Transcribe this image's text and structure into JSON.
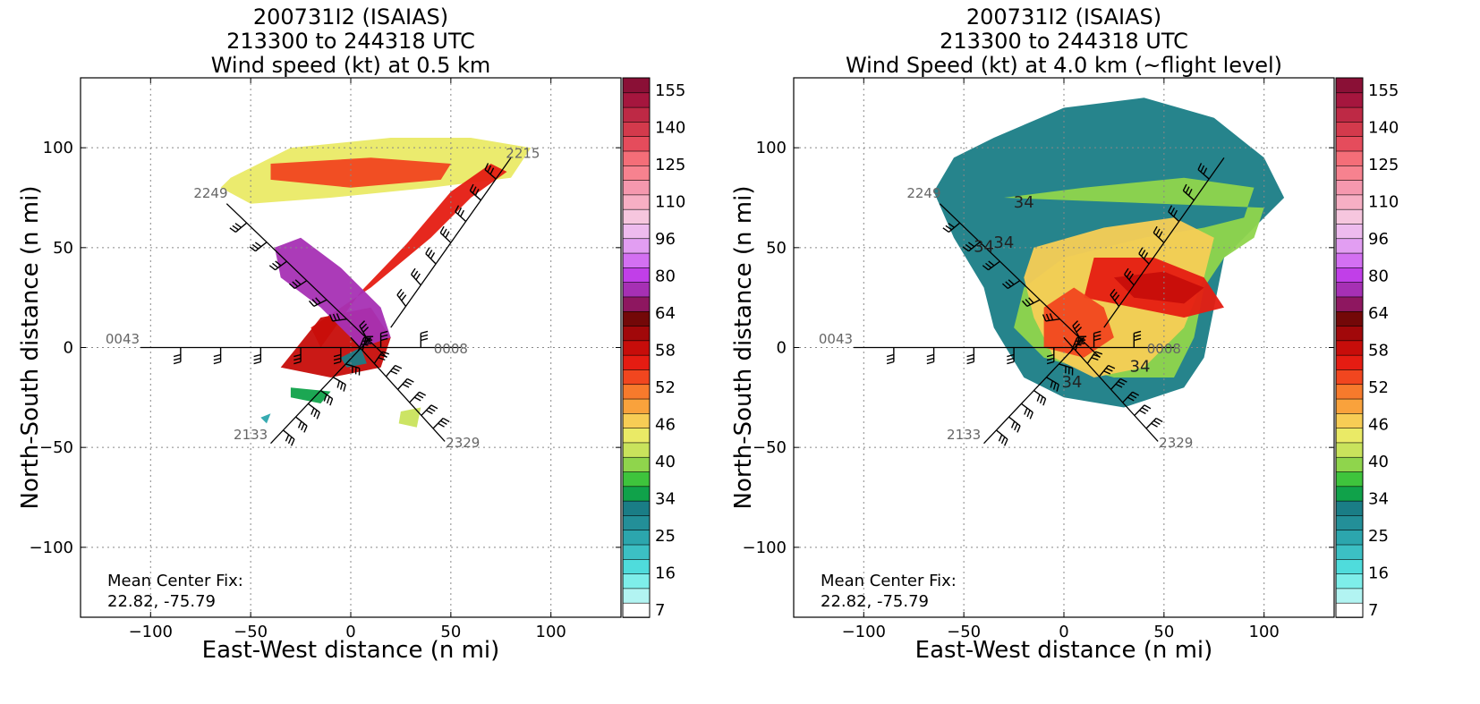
{
  "chart_data": [
    {
      "type": "heatmap",
      "title_lines": [
        "200731I2 (ISAIAS)",
        "213300 to 244318 UTC",
        "Wind speed (kt) at 0.5 km"
      ],
      "xlabel": "East-West distance (n mi)",
      "ylabel": "North-South distance (n mi)",
      "xlim": [
        -135,
        135
      ],
      "ylim": [
        -135,
        135
      ],
      "xticks": [
        -100,
        -50,
        0,
        50,
        100
      ],
      "yticks": [
        -100,
        -50,
        0,
        50,
        100
      ],
      "grid": true,
      "center_fix_label": "Mean Center Fix:",
      "center_fix_value": "22.82, -75.79",
      "track_labels": [
        {
          "label": "2249",
          "x": -70,
          "y": 75
        },
        {
          "label": "2215",
          "x": 86,
          "y": 95
        },
        {
          "label": "0043",
          "x": -114,
          "y": 2
        },
        {
          "label": "0008",
          "x": 50,
          "y": -3
        },
        {
          "label": "2133",
          "x": -50,
          "y": -46
        },
        {
          "label": "2329",
          "x": 56,
          "y": -50
        }
      ],
      "flight_legs": [
        {
          "x1": -62,
          "y1": 72,
          "x2": 18,
          "y2": -5
        },
        {
          "x1": -105,
          "y1": 0,
          "x2": 55,
          "y2": 0
        },
        {
          "x1": -40,
          "y1": -48,
          "x2": 10,
          "y2": 5
        },
        {
          "x1": 47,
          "y1": -47,
          "x2": 0,
          "y2": 5
        },
        {
          "x1": 20,
          "y1": 10,
          "x2": 80,
          "y2": 95
        }
      ],
      "wind_regions": [
        {
          "speed": 40,
          "poly": [
            [
              -60,
              85
            ],
            [
              -30,
              100
            ],
            [
              20,
              105
            ],
            [
              60,
              105
            ],
            [
              90,
              100
            ],
            [
              80,
              85
            ],
            [
              40,
              80
            ],
            [
              -10,
              75
            ],
            [
              -50,
              72
            ],
            [
              -65,
              80
            ]
          ]
        },
        {
          "speed": 52,
          "poly": [
            [
              -40,
              92
            ],
            [
              10,
              95
            ],
            [
              50,
              92
            ],
            [
              45,
              84
            ],
            [
              0,
              80
            ],
            [
              -40,
              84
            ]
          ]
        },
        {
          "speed": 55,
          "poly": [
            [
              -20,
              10
            ],
            [
              10,
              30
            ],
            [
              40,
              55
            ],
            [
              60,
              75
            ],
            [
              78,
              88
            ],
            [
              70,
              92
            ],
            [
              50,
              78
            ],
            [
              28,
              52
            ],
            [
              5,
              28
            ],
            [
              -15,
              0
            ]
          ]
        },
        {
          "speed": 58,
          "poly": [
            [
              -35,
              -10
            ],
            [
              -15,
              15
            ],
            [
              10,
              20
            ],
            [
              20,
              5
            ],
            [
              15,
              -10
            ],
            [
              -10,
              -15
            ]
          ]
        },
        {
          "speed": 80,
          "poly": [
            [
              -38,
              50
            ],
            [
              -25,
              55
            ],
            [
              -5,
              40
            ],
            [
              15,
              20
            ],
            [
              20,
              5
            ],
            [
              5,
              0
            ],
            [
              -15,
              20
            ],
            [
              -35,
              35
            ]
          ]
        },
        {
          "speed": 25,
          "poly": [
            [
              -5,
              -5
            ],
            [
              5,
              0
            ],
            [
              8,
              -8
            ],
            [
              -2,
              -10
            ]
          ]
        },
        {
          "speed": 30,
          "poly": [
            [
              -30,
              -20
            ],
            [
              -10,
              -22
            ],
            [
              -15,
              -28
            ],
            [
              -30,
              -25
            ]
          ]
        },
        {
          "speed": 38,
          "poly": [
            [
              25,
              -32
            ],
            [
              35,
              -30
            ],
            [
              33,
              -40
            ],
            [
              24,
              -38
            ]
          ]
        },
        {
          "speed": 20,
          "poly": [
            [
              -45,
              -35
            ],
            [
              -40,
              -33
            ],
            [
              -42,
              -38
            ]
          ]
        }
      ]
    },
    {
      "type": "heatmap",
      "title_lines": [
        "200731I2 (ISAIAS)",
        "213300 to 244318 UTC",
        "Wind Speed (kt) at 4.0 km (~flight level)"
      ],
      "xlabel": "East-West distance (n mi)",
      "ylabel": "North-South distance (n mi)",
      "xlim": [
        -135,
        135
      ],
      "ylim": [
        -135,
        135
      ],
      "xticks": [
        -100,
        -50,
        0,
        50,
        100
      ],
      "yticks": [
        -100,
        -50,
        0,
        50,
        100
      ],
      "grid": true,
      "center_fix_label": "Mean Center Fix:",
      "center_fix_value": "22.82, -75.79",
      "contour_labels": [
        {
          "label": "34",
          "x": -40,
          "y": 48
        },
        {
          "label": "34",
          "x": -30,
          "y": 50
        },
        {
          "label": "34",
          "x": -20,
          "y": 70
        },
        {
          "label": "34",
          "x": 38,
          "y": -12
        },
        {
          "label": "34",
          "x": 4,
          "y": -20
        }
      ],
      "track_labels": [
        {
          "label": "2249",
          "x": -70,
          "y": 75
        },
        {
          "label": "0043",
          "x": -114,
          "y": 2
        },
        {
          "label": "0008",
          "x": 50,
          "y": -3
        },
        {
          "label": "2133",
          "x": -50,
          "y": -46
        },
        {
          "label": "2329",
          "x": 56,
          "y": -50
        }
      ],
      "flight_legs": [
        {
          "x1": -62,
          "y1": 72,
          "x2": 18,
          "y2": -5
        },
        {
          "x1": -105,
          "y1": 0,
          "x2": 55,
          "y2": 0
        },
        {
          "x1": -40,
          "y1": -48,
          "x2": 10,
          "y2": 5
        },
        {
          "x1": 47,
          "y1": -47,
          "x2": 0,
          "y2": 5
        },
        {
          "x1": 20,
          "y1": 10,
          "x2": 80,
          "y2": 95
        }
      ],
      "wind_regions": [
        {
          "speed": 27,
          "poly": [
            [
              -35,
              105
            ],
            [
              0,
              120
            ],
            [
              40,
              125
            ],
            [
              75,
              115
            ],
            [
              100,
              95
            ],
            [
              110,
              75
            ],
            [
              95,
              60
            ],
            [
              80,
              45
            ],
            [
              75,
              20
            ],
            [
              70,
              -5
            ],
            [
              60,
              -20
            ],
            [
              30,
              -30
            ],
            [
              0,
              -25
            ],
            [
              -20,
              -15
            ],
            [
              -35,
              10
            ],
            [
              -40,
              30
            ],
            [
              -55,
              55
            ],
            [
              -65,
              78
            ],
            [
              -55,
              95
            ]
          ]
        },
        {
          "speed": 36,
          "poly": [
            [
              -30,
              75
            ],
            [
              10,
              80
            ],
            [
              60,
              85
            ],
            [
              95,
              80
            ],
            [
              90,
              65
            ],
            [
              70,
              60
            ],
            [
              40,
              55
            ],
            [
              0,
              45
            ],
            [
              -20,
              30
            ],
            [
              -25,
              10
            ],
            [
              -10,
              -5
            ],
            [
              25,
              -15
            ],
            [
              55,
              -15
            ],
            [
              65,
              5
            ],
            [
              70,
              30
            ],
            [
              80,
              45
            ],
            [
              95,
              55
            ],
            [
              100,
              70
            ]
          ]
        },
        {
          "speed": 45,
          "poly": [
            [
              -15,
              50
            ],
            [
              20,
              60
            ],
            [
              55,
              65
            ],
            [
              75,
              55
            ],
            [
              70,
              35
            ],
            [
              60,
              10
            ],
            [
              40,
              -10
            ],
            [
              15,
              -15
            ],
            [
              -5,
              -5
            ],
            [
              -15,
              15
            ],
            [
              -20,
              35
            ]
          ]
        },
        {
          "speed": 55,
          "poly": [
            [
              15,
              45
            ],
            [
              45,
              45
            ],
            [
              70,
              35
            ],
            [
              80,
              20
            ],
            [
              60,
              15
            ],
            [
              35,
              20
            ],
            [
              10,
              25
            ]
          ]
        },
        {
          "speed": 52,
          "poly": [
            [
              -10,
              20
            ],
            [
              5,
              30
            ],
            [
              20,
              20
            ],
            [
              25,
              5
            ],
            [
              10,
              -5
            ],
            [
              -10,
              0
            ]
          ]
        },
        {
          "speed": 58,
          "poly": [
            [
              25,
              35
            ],
            [
              50,
              38
            ],
            [
              70,
              30
            ],
            [
              60,
              22
            ],
            [
              35,
              25
            ]
          ]
        }
      ]
    }
  ],
  "colorbar": {
    "tick_labels": [
      "155",
      "140",
      "125",
      "110",
      "96",
      "80",
      "64",
      "58",
      "52",
      "46",
      "40",
      "34",
      "25",
      "16",
      "7"
    ],
    "bin_colors": [
      "#ffffff",
      "#b2f4f2",
      "#7eeeea",
      "#4fdcdc",
      "#3cc0c4",
      "#2ca6ad",
      "#238f98",
      "#1a7d86",
      "#10a24a",
      "#3ec43c",
      "#8fd54c",
      "#c9e35c",
      "#eaea66",
      "#f7cd55",
      "#f9a23c",
      "#f77a2c",
      "#f1461f",
      "#e51c12",
      "#c70d0a",
      "#a1080a",
      "#730808",
      "#8e1760",
      "#a630b4",
      "#c13fe8",
      "#d370f2",
      "#e29ef2",
      "#eebbee",
      "#f6c6de",
      "#f7afc4",
      "#f598ae",
      "#f7828f",
      "#f46e78",
      "#e54c5c",
      "#d33a4c",
      "#be2945",
      "#a5163e",
      "#8a1036"
    ]
  }
}
